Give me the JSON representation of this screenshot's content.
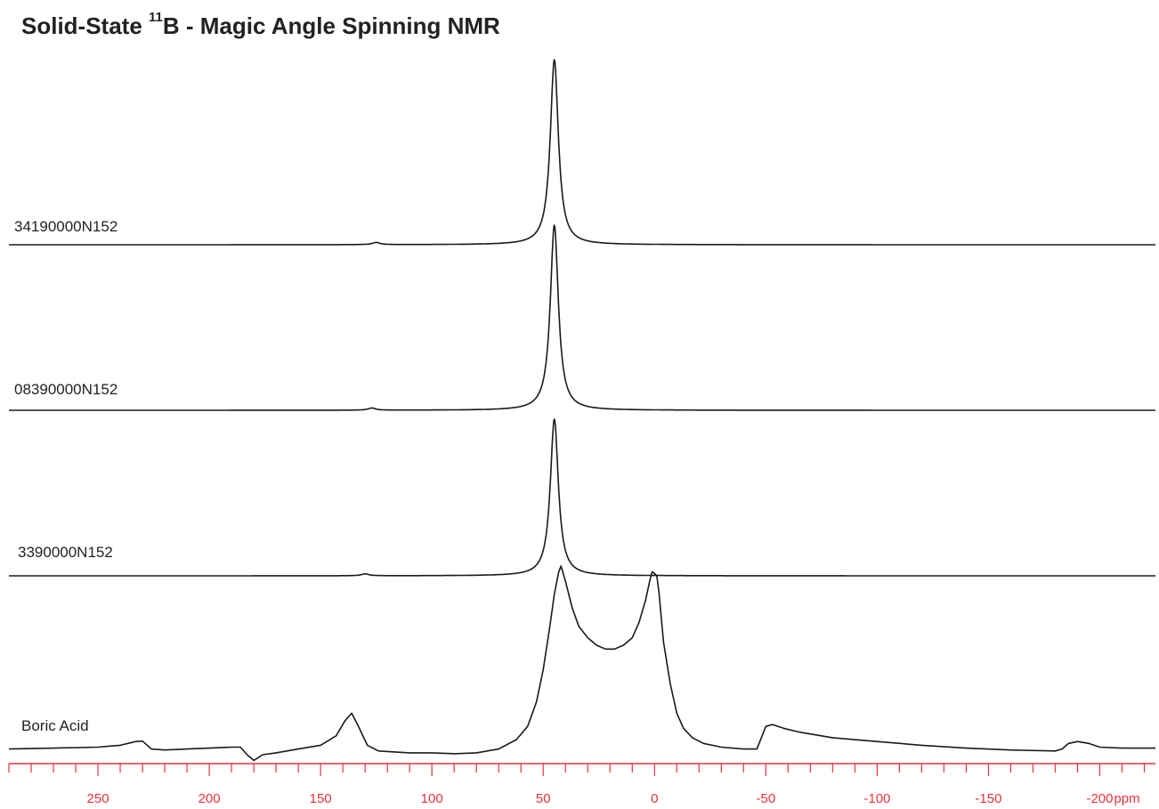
{
  "chart_data": {
    "type": "line",
    "title_main": "Solid-State ",
    "title_sup": "11",
    "title_rest": "B - Magic Angle Spinning NMR",
    "xlabel": "ppm",
    "xlim": [
      290,
      -225
    ],
    "x_ticks": [
      250,
      200,
      150,
      100,
      50,
      0,
      -50,
      -100,
      -150,
      -200
    ],
    "axis_color": "#e8333a",
    "line_color": "#1a1a1a",
    "series": [
      {
        "name": "34190000N152",
        "peaks": [
          {
            "x": 45,
            "height": 1.0,
            "width": 2.2
          },
          {
            "x": 125,
            "height": 0.012,
            "width": 2
          }
        ],
        "points": [
          [
            290,
            0.0
          ],
          [
            280,
            0.001
          ],
          [
            270,
            0.0
          ],
          [
            260,
            0.002
          ],
          [
            250,
            0.0
          ],
          [
            240,
            0.001
          ],
          [
            230,
            0.0
          ],
          [
            220,
            0.002
          ],
          [
            210,
            0.0
          ],
          [
            200,
            0.001
          ],
          [
            190,
            0.0
          ],
          [
            180,
            0.002
          ],
          [
            170,
            0.0
          ],
          [
            160,
            0.001
          ],
          [
            150,
            0.0
          ],
          [
            140,
            0.002
          ],
          [
            130,
            0.004
          ],
          [
            125,
            0.012
          ],
          [
            120,
            0.003
          ],
          [
            110,
            0.0
          ],
          [
            100,
            0.001
          ],
          [
            90,
            0.0
          ],
          [
            80,
            0.001
          ],
          [
            70,
            0.003
          ],
          [
            60,
            0.006
          ],
          [
            55,
            0.012
          ],
          [
            52,
            0.03
          ],
          [
            50,
            0.09
          ],
          [
            48,
            0.3
          ],
          [
            47,
            0.55
          ],
          [
            46,
            0.85
          ],
          [
            45,
            1.0
          ],
          [
            44,
            0.85
          ],
          [
            43,
            0.55
          ],
          [
            42,
            0.3
          ],
          [
            40,
            0.12
          ],
          [
            38,
            0.05
          ],
          [
            35,
            0.02
          ],
          [
            30,
            0.008
          ],
          [
            20,
            0.003
          ],
          [
            10,
            0.001
          ],
          [
            0,
            0.0
          ],
          [
            -25,
            0.002
          ],
          [
            -50,
            0.0
          ],
          [
            -75,
            0.001
          ],
          [
            -100,
            0.0
          ],
          [
            -125,
            0.001
          ],
          [
            -150,
            0.0
          ],
          [
            -175,
            0.001
          ],
          [
            -200,
            0.0
          ],
          [
            -225,
            0.001
          ]
        ]
      },
      {
        "name": "08390000N152",
        "peaks": [
          {
            "x": 45,
            "height": 1.0,
            "width": 2.2
          },
          {
            "x": 127,
            "height": 0.012,
            "width": 2
          }
        ],
        "points": [
          [
            290,
            0.0
          ],
          [
            280,
            0.002
          ],
          [
            270,
            0.0
          ],
          [
            260,
            0.001
          ],
          [
            250,
            0.0
          ],
          [
            240,
            0.002
          ],
          [
            230,
            0.0
          ],
          [
            220,
            0.001
          ],
          [
            210,
            0.0
          ],
          [
            200,
            0.002
          ],
          [
            190,
            0.0
          ],
          [
            180,
            0.001
          ],
          [
            170,
            0.0
          ],
          [
            160,
            0.002
          ],
          [
            150,
            0.0
          ],
          [
            140,
            0.001
          ],
          [
            132,
            0.004
          ],
          [
            127,
            0.012
          ],
          [
            122,
            0.003
          ],
          [
            110,
            0.0
          ],
          [
            100,
            0.002
          ],
          [
            90,
            0.0
          ],
          [
            80,
            0.001
          ],
          [
            70,
            0.003
          ],
          [
            60,
            0.006
          ],
          [
            55,
            0.012
          ],
          [
            52,
            0.03
          ],
          [
            50,
            0.09
          ],
          [
            48,
            0.3
          ],
          [
            47,
            0.55
          ],
          [
            46,
            0.85
          ],
          [
            45,
            1.0
          ],
          [
            44,
            0.85
          ],
          [
            43,
            0.55
          ],
          [
            42,
            0.3
          ],
          [
            40,
            0.12
          ],
          [
            38,
            0.05
          ],
          [
            35,
            0.02
          ],
          [
            30,
            0.008
          ],
          [
            20,
            0.003
          ],
          [
            10,
            0.001
          ],
          [
            0,
            0.0
          ],
          [
            -25,
            0.001
          ],
          [
            -50,
            0.0
          ],
          [
            -75,
            0.002
          ],
          [
            -100,
            0.0
          ],
          [
            -125,
            0.001
          ],
          [
            -150,
            0.0
          ],
          [
            -175,
            0.002
          ],
          [
            -200,
            0.0
          ],
          [
            -225,
            0.001
          ]
        ]
      },
      {
        "name": "3390000N152",
        "peaks": [
          {
            "x": 45,
            "height": 1.0,
            "width": 2.2
          },
          {
            "x": 130,
            "height": 0.012,
            "width": 2
          }
        ],
        "points": [
          [
            290,
            0.0
          ],
          [
            280,
            0.001
          ],
          [
            270,
            0.0
          ],
          [
            260,
            0.001
          ],
          [
            250,
            0.0
          ],
          [
            240,
            0.002
          ],
          [
            230,
            0.0
          ],
          [
            220,
            0.001
          ],
          [
            210,
            0.0
          ],
          [
            200,
            0.001
          ],
          [
            190,
            0.0
          ],
          [
            180,
            0.002
          ],
          [
            170,
            0.0
          ],
          [
            160,
            0.001
          ],
          [
            150,
            0.0
          ],
          [
            140,
            0.002
          ],
          [
            135,
            0.004
          ],
          [
            130,
            0.012
          ],
          [
            125,
            0.003
          ],
          [
            110,
            0.0
          ],
          [
            100,
            0.001
          ],
          [
            90,
            0.0
          ],
          [
            80,
            0.002
          ],
          [
            70,
            0.003
          ],
          [
            60,
            0.006
          ],
          [
            55,
            0.012
          ],
          [
            52,
            0.03
          ],
          [
            50,
            0.09
          ],
          [
            48,
            0.3
          ],
          [
            47,
            0.55
          ],
          [
            46,
            0.85
          ],
          [
            45,
            1.0
          ],
          [
            44,
            0.85
          ],
          [
            43,
            0.55
          ],
          [
            42,
            0.3
          ],
          [
            40,
            0.12
          ],
          [
            38,
            0.05
          ],
          [
            35,
            0.02
          ],
          [
            30,
            0.008
          ],
          [
            20,
            0.003
          ],
          [
            10,
            0.001
          ],
          [
            0,
            0.0
          ],
          [
            -25,
            0.002
          ],
          [
            -50,
            0.0
          ],
          [
            -75,
            0.001
          ],
          [
            -100,
            0.0
          ],
          [
            -125,
            0.002
          ],
          [
            -150,
            0.0
          ],
          [
            -175,
            0.001
          ],
          [
            -200,
            0.0
          ],
          [
            -225,
            0.001
          ]
        ]
      },
      {
        "name": "Boric Acid",
        "points": [
          [
            290,
            0.03
          ],
          [
            270,
            0.035
          ],
          [
            250,
            0.04
          ],
          [
            240,
            0.05
          ],
          [
            233,
            0.07
          ],
          [
            230,
            0.072
          ],
          [
            226,
            0.03
          ],
          [
            220,
            0.025
          ],
          [
            210,
            0.03
          ],
          [
            200,
            0.035
          ],
          [
            190,
            0.04
          ],
          [
            186,
            0.04
          ],
          [
            183,
            0.0
          ],
          [
            180,
            -0.03
          ],
          [
            176,
            0.0
          ],
          [
            170,
            0.01
          ],
          [
            160,
            0.03
          ],
          [
            150,
            0.05
          ],
          [
            143,
            0.1
          ],
          [
            139,
            0.18
          ],
          [
            136,
            0.22
          ],
          [
            133,
            0.15
          ],
          [
            129,
            0.05
          ],
          [
            124,
            0.02
          ],
          [
            110,
            0.01
          ],
          [
            100,
            0.01
          ],
          [
            90,
            0.005
          ],
          [
            80,
            0.01
          ],
          [
            70,
            0.03
          ],
          [
            62,
            0.08
          ],
          [
            57,
            0.15
          ],
          [
            53,
            0.28
          ],
          [
            50,
            0.45
          ],
          [
            47,
            0.68
          ],
          [
            45,
            0.85
          ],
          [
            43,
            0.97
          ],
          [
            42,
            1.0
          ],
          [
            40,
            0.92
          ],
          [
            37,
            0.78
          ],
          [
            34,
            0.68
          ],
          [
            30,
            0.62
          ],
          [
            26,
            0.58
          ],
          [
            22,
            0.56
          ],
          [
            18,
            0.56
          ],
          [
            14,
            0.58
          ],
          [
            10,
            0.62
          ],
          [
            7,
            0.7
          ],
          [
            4,
            0.82
          ],
          [
            2,
            0.93
          ],
          [
            1,
            0.97
          ],
          [
            -1,
            0.95
          ],
          [
            -2,
            0.86
          ],
          [
            -4,
            0.6
          ],
          [
            -7,
            0.38
          ],
          [
            -10,
            0.22
          ],
          [
            -13,
            0.14
          ],
          [
            -17,
            0.09
          ],
          [
            -22,
            0.06
          ],
          [
            -30,
            0.04
          ],
          [
            -40,
            0.03
          ],
          [
            -46,
            0.03
          ],
          [
            -48,
            0.09
          ],
          [
            -50,
            0.15
          ],
          [
            -53,
            0.16
          ],
          [
            -58,
            0.14
          ],
          [
            -65,
            0.12
          ],
          [
            -80,
            0.09
          ],
          [
            -100,
            0.07
          ],
          [
            -120,
            0.05
          ],
          [
            -140,
            0.035
          ],
          [
            -160,
            0.025
          ],
          [
            -180,
            0.02
          ],
          [
            -183,
            0.03
          ],
          [
            -186,
            0.06
          ],
          [
            -190,
            0.07
          ],
          [
            -195,
            0.06
          ],
          [
            -200,
            0.04
          ],
          [
            -210,
            0.035
          ],
          [
            -225,
            0.035
          ]
        ]
      }
    ]
  }
}
